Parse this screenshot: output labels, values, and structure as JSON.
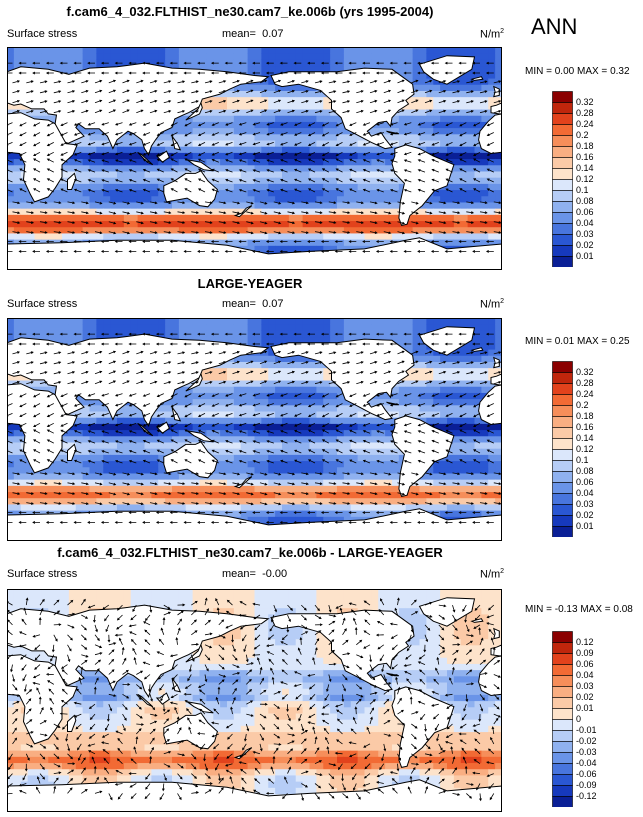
{
  "season": "ANN",
  "chart_data": [
    {
      "type": "heatmap",
      "title": "f.cam6_4_032.FLTHIST_ne30.cam7_ke.006b (yrs 1995-2004)",
      "variable": "Surface stress",
      "mean_label": "mean=",
      "mean": "0.07",
      "units": "N/m",
      "units_exp": "2",
      "min_label": "MIN =",
      "min": "0.00",
      "max_label": "MAX =",
      "max": "0.32",
      "levels": [
        "0.32",
        "0.28",
        "0.24",
        "0.2",
        "0.18",
        "0.16",
        "0.14",
        "0.12",
        "0.1",
        "0.08",
        "0.06",
        "0.04",
        "0.03",
        "0.02",
        "0.01"
      ],
      "colors": [
        "#8b0000",
        "#c0260c",
        "#e2421c",
        "#f26a34",
        "#f68e5a",
        "#f9ae82",
        "#fbcaa7",
        "#fde3cb",
        "#dbe7fb",
        "#b6cdf6",
        "#8fb1ef",
        "#6a94e8",
        "#4875de",
        "#2a57d3",
        "#1639bd",
        "#0a1f96"
      ]
    },
    {
      "type": "heatmap",
      "title": "LARGE-YEAGER",
      "variable": "Surface stress",
      "mean_label": "mean=",
      "mean": "0.07",
      "units": "N/m",
      "units_exp": "2",
      "min_label": "MIN =",
      "min": "0.01",
      "max_label": "MAX =",
      "max": "0.25",
      "levels": [
        "0.32",
        "0.28",
        "0.24",
        "0.2",
        "0.18",
        "0.16",
        "0.14",
        "0.12",
        "0.1",
        "0.08",
        "0.06",
        "0.04",
        "0.03",
        "0.02",
        "0.01"
      ],
      "colors": [
        "#8b0000",
        "#c0260c",
        "#e2421c",
        "#f26a34",
        "#f68e5a",
        "#f9ae82",
        "#fbcaa7",
        "#fde3cb",
        "#dbe7fb",
        "#b6cdf6",
        "#8fb1ef",
        "#6a94e8",
        "#4875de",
        "#2a57d3",
        "#1639bd",
        "#0a1f96"
      ]
    },
    {
      "type": "heatmap",
      "title": "f.cam6_4_032.FLTHIST_ne30.cam7_ke.006b - LARGE-YEAGER",
      "variable": "Surface stress",
      "mean_label": "mean=",
      "mean": "-0.00",
      "units": "N/m",
      "units_exp": "2",
      "min_label": "MIN =",
      "min": "-0.13",
      "max_label": "MAX =",
      "max": "0.08",
      "levels": [
        "0.12",
        "0.09",
        "0.06",
        "0.04",
        "0.03",
        "0.02",
        "0.01",
        "0",
        "-0.01",
        "-0.02",
        "-0.03",
        "-0.04",
        "-0.06",
        "-0.09",
        "-0.12"
      ],
      "colors": [
        "#8b0000",
        "#c0260c",
        "#e2421c",
        "#f26a34",
        "#f68e5a",
        "#f9ae82",
        "#fbcaa7",
        "#fde3cb",
        "#dbe7fb",
        "#b6cdf6",
        "#8fb1ef",
        "#6a94e8",
        "#4875de",
        "#2a57d3",
        "#1639bd",
        "#0a1f96"
      ]
    }
  ]
}
